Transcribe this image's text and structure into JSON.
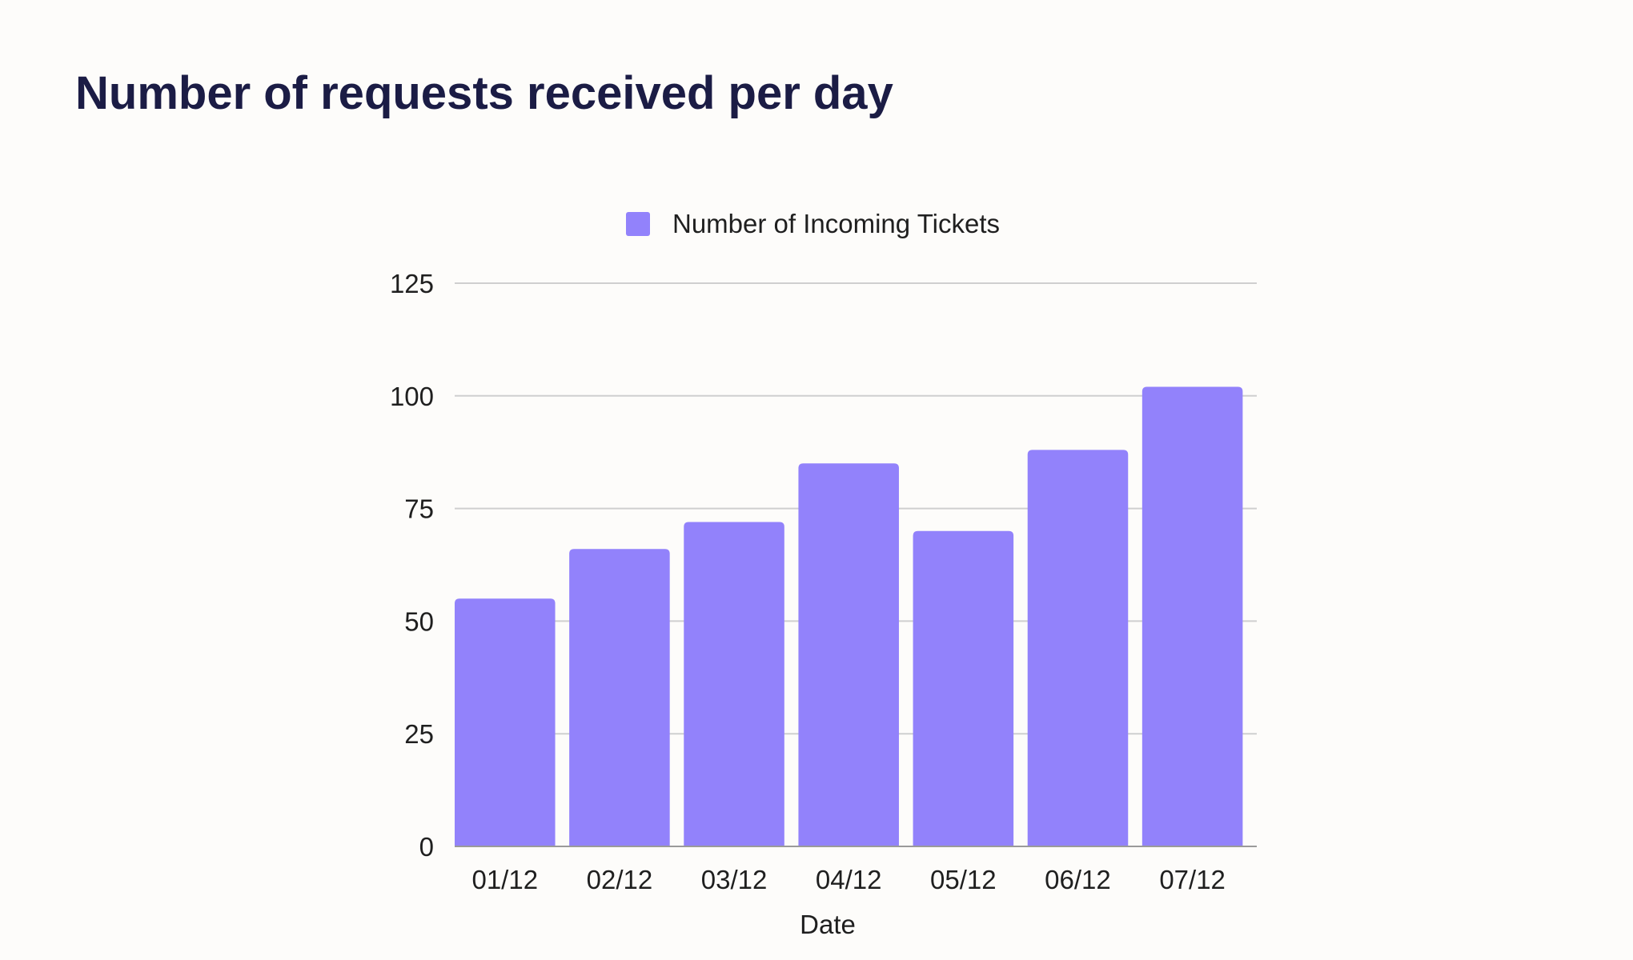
{
  "page": {
    "title": "Number of requests received per day"
  },
  "chart_data": {
    "type": "bar",
    "categories": [
      "01/12",
      "02/12",
      "03/12",
      "04/12",
      "05/12",
      "06/12",
      "07/12"
    ],
    "series": [
      {
        "name": "Number of Incoming Tickets",
        "values": [
          55,
          66,
          72,
          85,
          70,
          88,
          102
        ],
        "color": "#9282fb"
      }
    ],
    "xlabel": "Date",
    "ylabel": "",
    "ylim": [
      0,
      125
    ],
    "yticks": [
      0,
      25,
      50,
      75,
      100,
      125
    ],
    "grid": true,
    "legend_position": "top-center",
    "colors": {
      "background": "#fdfcfa",
      "gridline": "#cfcfcf",
      "axis": "#9a9a9a",
      "title": "#1b1c45",
      "text": "#1f1f1f"
    }
  }
}
